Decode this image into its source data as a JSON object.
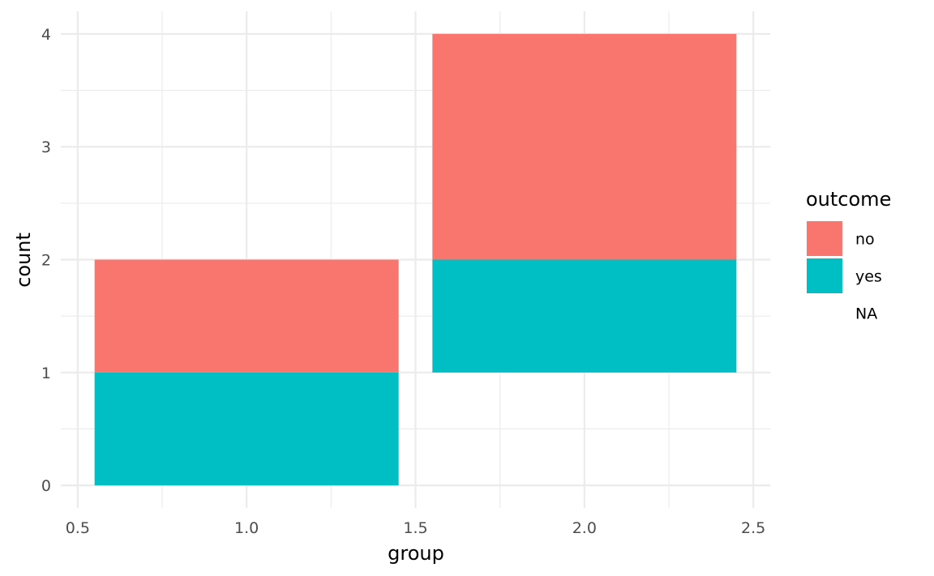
{
  "chart_data": {
    "type": "bar",
    "title": "",
    "xlabel": "group",
    "ylabel": "count",
    "xlim": [
      0.45,
      2.55
    ],
    "ylim": [
      -0.2,
      4.2
    ],
    "x_ticks": [
      0.5,
      1.0,
      1.5,
      2.0,
      2.5
    ],
    "x_tick_labels": [
      "0.5",
      "1.0",
      "1.5",
      "2.0",
      "2.5"
    ],
    "y_ticks": [
      0,
      1,
      2,
      3,
      4
    ],
    "y_tick_labels": [
      "0",
      "1",
      "2",
      "3",
      "4"
    ],
    "grid": true,
    "legend": {
      "title": "outcome",
      "position": "right",
      "entries": [
        {
          "label": "no",
          "color": "#F8766D"
        },
        {
          "label": "yes",
          "color": "#00BFC4"
        },
        {
          "label": "NA",
          "color": null
        }
      ]
    },
    "bars": [
      {
        "x": 1.0,
        "width": 0.9,
        "outcome": "yes",
        "ymin": 0,
        "ymax": 1,
        "color": "#00BFC4"
      },
      {
        "x": 1.0,
        "width": 0.9,
        "outcome": "no",
        "ymin": 1,
        "ymax": 2,
        "color": "#F8766D"
      },
      {
        "x": 2.0,
        "width": 0.9,
        "outcome": "yes",
        "ymin": 1,
        "ymax": 2,
        "color": "#00BFC4"
      },
      {
        "x": 2.0,
        "width": 0.9,
        "outcome": "no",
        "ymin": 2,
        "ymax": 4,
        "color": "#F8766D"
      }
    ]
  }
}
